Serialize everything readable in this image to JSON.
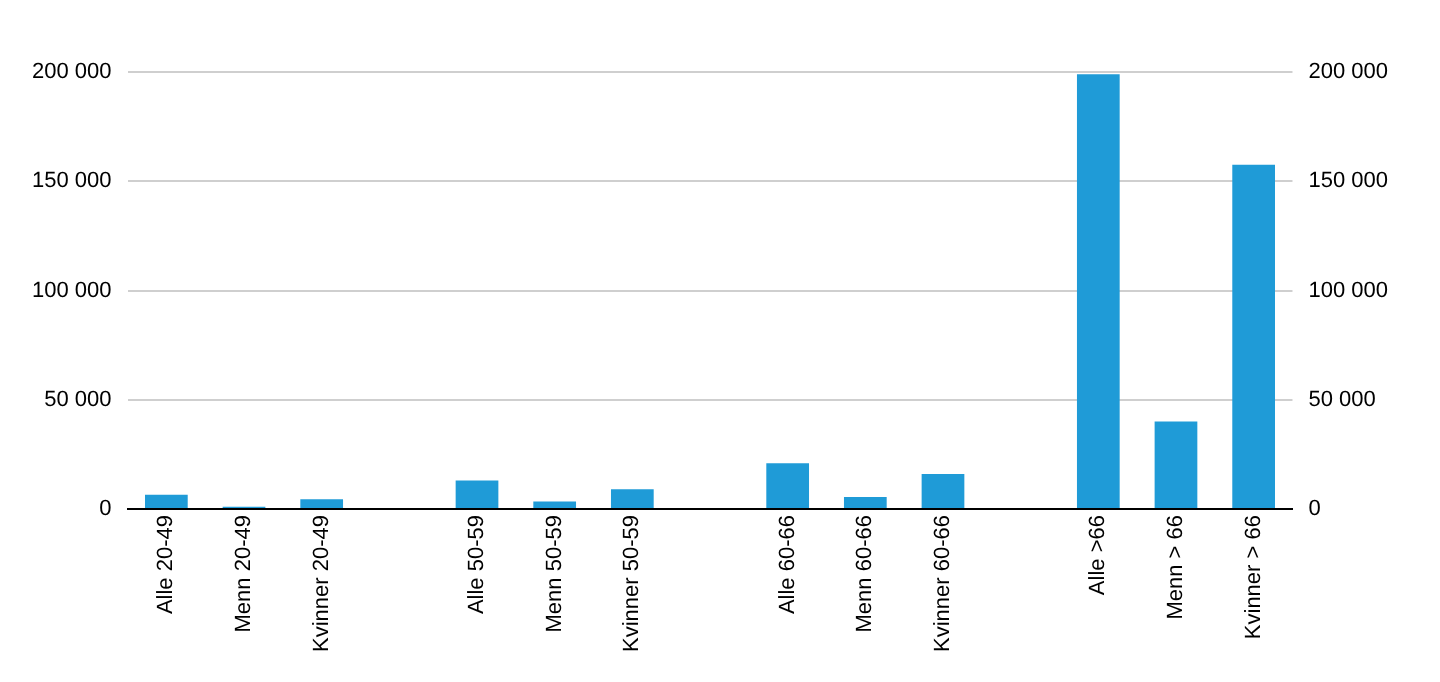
{
  "chart_data": {
    "type": "bar",
    "categories": [
      "Alle 20-49",
      "Menn 20-49",
      "Kvinner 20-49",
      null,
      "Alle 50-59",
      "Menn 50-59",
      "Kvinner 50-59",
      null,
      "Alle 60-66",
      "Menn 60-66",
      "Kvinner 60-66",
      null,
      "Alle >66",
      "Menn > 66",
      "Kvinner > 66"
    ],
    "values": [
      6500,
      1000,
      4500,
      null,
      13000,
      3500,
      9000,
      null,
      21000,
      5500,
      16000,
      null,
      199000,
      40000,
      157500
    ],
    "color": "#1f9bd7",
    "ylim": [
      0,
      200000
    ],
    "yticks": [
      {
        "value": 0,
        "label": "0"
      },
      {
        "value": 50000,
        "label": "50 000"
      },
      {
        "value": 100000,
        "label": "100 000"
      },
      {
        "value": 150000,
        "label": "150 000"
      },
      {
        "value": 200000,
        "label": "200 000"
      }
    ],
    "y2lim": [
      0,
      200000
    ],
    "y2ticks": [
      {
        "value": 0,
        "label": "0"
      },
      {
        "value": 50000,
        "label": "50 000"
      },
      {
        "value": 100000,
        "label": "100 000"
      },
      {
        "value": 150000,
        "label": "150 000"
      },
      {
        "value": 200000,
        "label": "200 000"
      }
    ],
    "grid": "y",
    "legend": false
  }
}
